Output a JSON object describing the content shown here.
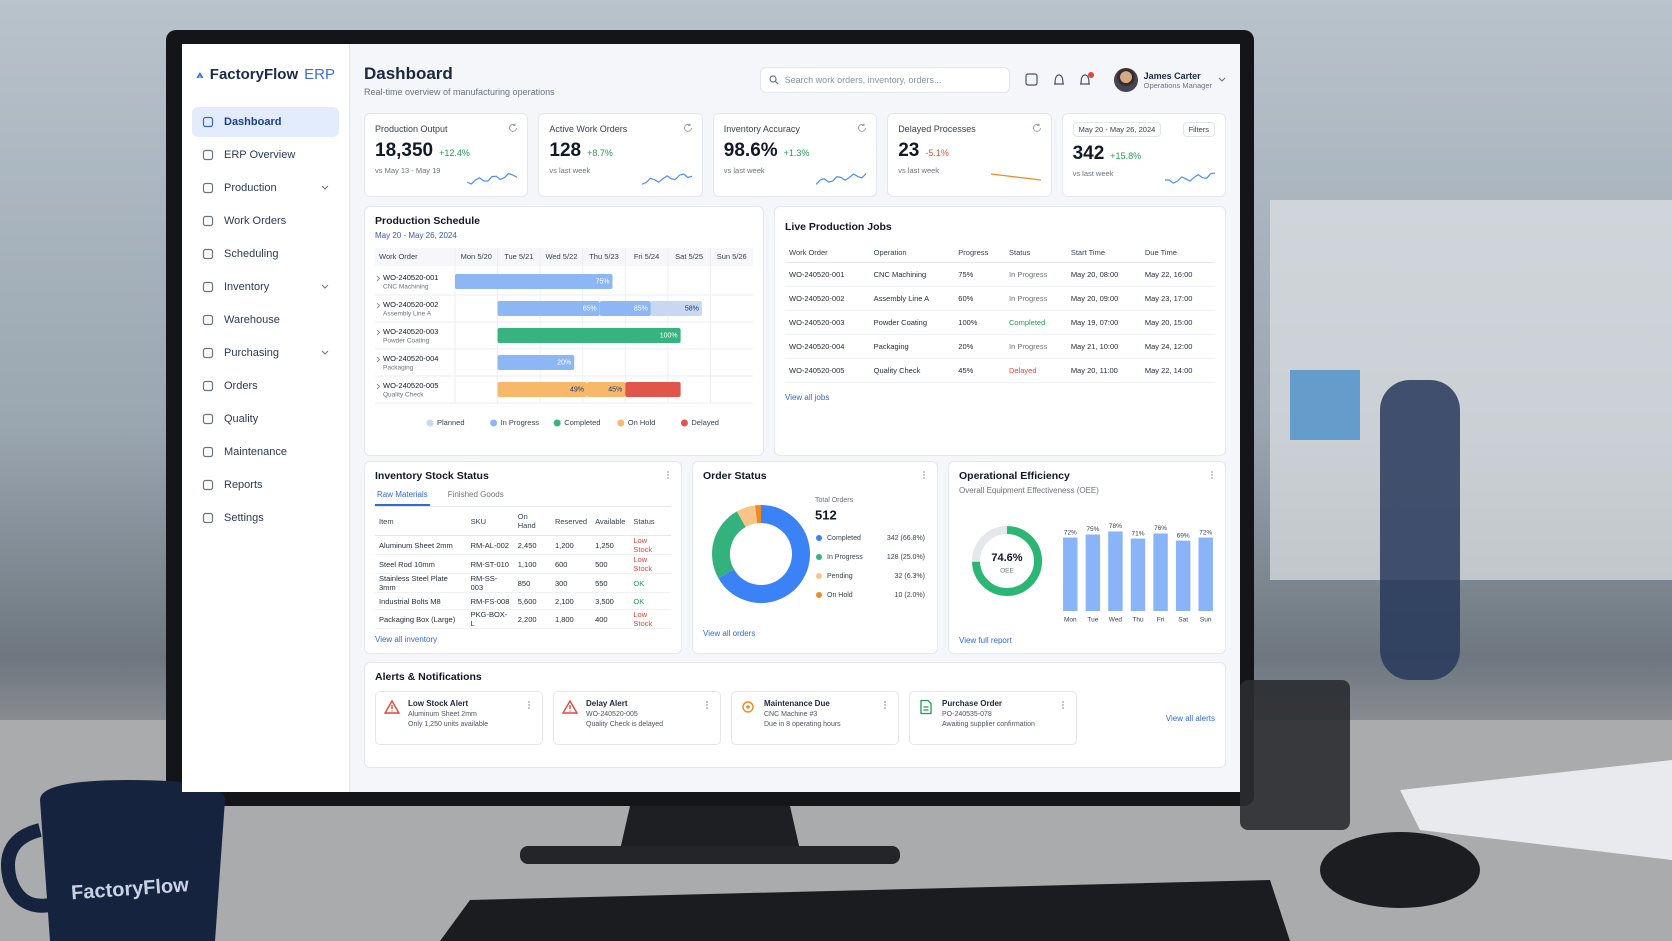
{
  "brand": {
    "name": "FactoryFlow",
    "suffix": "ERP"
  },
  "sidebar": {
    "items": [
      "Dashboard",
      "ERP Overview",
      "Production",
      "Work Orders",
      "Scheduling",
      "Inventory",
      "Warehouse",
      "Purchasing",
      "Orders",
      "Quality",
      "Maintenance",
      "Reports",
      "Settings"
    ],
    "active": 0,
    "expandable": [
      2,
      5,
      7
    ]
  },
  "header": {
    "title": "Dashboard",
    "subtitle": "Real-time overview of manufacturing operations",
    "search_placeholder": "Search work orders, inventory, orders...",
    "user": {
      "name": "James Carter",
      "role": "Operations Manager"
    }
  },
  "kpis": [
    {
      "label": "Production Output",
      "value": "18,350",
      "change": "+12.4%",
      "trend": "up",
      "period": "vs May 13 - May 19"
    },
    {
      "label": "Active Work Orders",
      "value": "128",
      "change": "+8.7%",
      "trend": "up",
      "period": "vs last week"
    },
    {
      "label": "Inventory Accuracy",
      "value": "98.6%",
      "change": "+1.3%",
      "trend": "up",
      "period": "vs last week"
    },
    {
      "label": "Delayed Processes",
      "value": "23",
      "change": "-5.1%",
      "trend": "down",
      "period": "vs last week"
    },
    {
      "date": "May 20 - May 26, 2024",
      "filter": "Filters",
      "value": "342",
      "change": "+15.8%",
      "trend": "up",
      "period": "vs last week"
    }
  ],
  "production_schedule": {
    "title": "Production Schedule",
    "date_range": "May 20 - May 26, 2024",
    "column_header": "Work Order",
    "days": [
      "Mon 5/20",
      "Tue 5/21",
      "Wed 5/22",
      "Thu 5/23",
      "Fri 5/24",
      "Sat 5/25",
      "Sun 5/26"
    ],
    "xlim": [
      0,
      7
    ],
    "rows": [
      {
        "id": "WO-240520-001",
        "operation": "CNC Machining",
        "segments": [
          {
            "start": 0,
            "end": 3.7,
            "status": "In Progress",
            "progress": 75,
            "label": "75%"
          }
        ]
      },
      {
        "id": "WO-240520-002",
        "operation": "Assembly Line A",
        "segments": [
          {
            "start": 1,
            "end": 3.4,
            "status": "In Progress",
            "progress": 65,
            "label": "65%"
          },
          {
            "start": 3.4,
            "end": 4.6,
            "status": "In Progress",
            "progress": 85,
            "label": "85%"
          },
          {
            "start": 4.6,
            "end": 5.8,
            "status": "Planned",
            "progress": 58,
            "label": "58%"
          }
        ]
      },
      {
        "id": "WO-240520-003",
        "operation": "Powder Coating",
        "segments": [
          {
            "start": 1,
            "end": 5.3,
            "status": "Completed",
            "progress": 100,
            "label": "100%"
          }
        ]
      },
      {
        "id": "WO-240520-004",
        "operation": "Packaging",
        "segments": [
          {
            "start": 1,
            "end": 2.8,
            "status": "In Progress",
            "progress": 20,
            "label": "20%"
          }
        ]
      },
      {
        "id": "WO-240520-005",
        "operation": "Quality Check",
        "segments": [
          {
            "start": 1,
            "end": 3.1,
            "status": "On Hold",
            "progress": 49,
            "label": "49%"
          },
          {
            "start": 3.1,
            "end": 4.0,
            "status": "On Hold",
            "progress": 45,
            "label": "45%"
          },
          {
            "start": 4.0,
            "end": 5.3,
            "status": "Delayed"
          }
        ]
      }
    ],
    "legend": [
      {
        "name": "Planned",
        "color": "#c8d7f2"
      },
      {
        "name": "In Progress",
        "color": "#8db6f5"
      },
      {
        "name": "Completed",
        "color": "#36b37e"
      },
      {
        "name": "On Hold",
        "color": "#f7b86a"
      },
      {
        "name": "Delayed",
        "color": "#e0564a"
      }
    ]
  },
  "live_jobs": {
    "title": "Live Production Jobs",
    "columns": [
      "Work Order",
      "Operation",
      "Progress",
      "Status",
      "Start Time",
      "Due Time"
    ],
    "rows": [
      [
        "WO-240520-001",
        "CNC Machining",
        "75%",
        "In Progress",
        "May 20, 08:00",
        "May 22, 16:00"
      ],
      [
        "WO-240520-002",
        "Assembly Line A",
        "60%",
        "In Progress",
        "May 20, 09:00",
        "May 23, 17:00"
      ],
      [
        "WO-240520-003",
        "Powder Coating",
        "100%",
        "Completed",
        "May 19, 07:00",
        "May 20, 15:00"
      ],
      [
        "WO-240520-004",
        "Packaging",
        "20%",
        "In Progress",
        "May 21, 10:00",
        "May 24, 12:00"
      ],
      [
        "WO-240520-005",
        "Quality Check",
        "45%",
        "Delayed",
        "May 20, 11:00",
        "May 22, 14:00"
      ]
    ],
    "status_colors": [
      "#6b7280",
      "#6b7280",
      "#1f9d55",
      "#6b7280",
      "#e0463b"
    ],
    "link": "View all jobs"
  },
  "inventory": {
    "title": "Inventory Stock Status",
    "tabs": [
      "Raw Materials",
      "Finished Goods"
    ],
    "columns": [
      "Item",
      "SKU",
      "On Hand",
      "Reserved",
      "Available",
      "Status"
    ],
    "rows": [
      [
        "Aluminum Sheet 2mm",
        "RM-AL-002",
        "2,450",
        "1,200",
        "1,250",
        "Low Stock"
      ],
      [
        "Steel Rod 10mm",
        "RM-ST-010",
        "1,100",
        "600",
        "500",
        "Low Stock"
      ],
      [
        "Stainless Steel Plate 3mm",
        "RM-SS-003",
        "850",
        "300",
        "550",
        "OK"
      ],
      [
        "Industrial Bolts M8",
        "RM-FS-008",
        "5,600",
        "2,100",
        "3,500",
        "OK"
      ],
      [
        "Packaging Box (Large)",
        "PKG-BOX-L",
        "2,200",
        "1,800",
        "400",
        "Low Stock"
      ]
    ],
    "status_colors": [
      "#e0463b",
      "#e0463b",
      "#1f9d55",
      "#1f9d55",
      "#e0463b"
    ],
    "link": "View all inventory"
  },
  "chart_data": [
    {
      "type": "donut",
      "title": "Order Status",
      "total_label": "Total Orders",
      "total": 512,
      "categories": [
        "Completed",
        "In Progress",
        "Pending",
        "On Hold"
      ],
      "values": [
        342,
        128,
        32,
        10
      ],
      "value_labels": [
        "342 (66.8%)",
        "128 (25.0%)",
        "32 (6.3%)",
        "10 (2.0%)"
      ],
      "colors": [
        "#3b82f6",
        "#34b27d",
        "#f8c48a",
        "#f08a24"
      ],
      "link": "View all orders"
    },
    {
      "type": "bar",
      "title": "Operational Efficiency",
      "subtitle": "Overall Equipment Effectiveness (OEE)",
      "gauge": {
        "value": 74.6,
        "label": "74.6%",
        "caption": "OEE",
        "lim": [
          0,
          100
        ],
        "color": "#2bb673"
      },
      "categories": [
        "Mon",
        "Tue",
        "Wed",
        "Thu",
        "Fri",
        "Sat",
        "Sun"
      ],
      "values": [
        72,
        75,
        78,
        71,
        76,
        69,
        72
      ],
      "value_labels": [
        "72%",
        "75%",
        "78%",
        "71%",
        "76%",
        "69%",
        "72%"
      ],
      "ylim": [
        0,
        100
      ],
      "color": "#8ab4f8",
      "link": "View full report"
    }
  ],
  "alerts": {
    "title": "Alerts & Notifications",
    "items": [
      {
        "title": "Low Stock Alert",
        "lines": [
          "Aluminum Sheet 2mm",
          "Only 1,250 units available"
        ],
        "icon": "warning",
        "color": "#e0463b"
      },
      {
        "title": "Delay Alert",
        "lines": [
          "WO-240520-005",
          "Quality Check is delayed"
        ],
        "icon": "warning",
        "color": "#e0463b"
      },
      {
        "title": "Maintenance Due",
        "lines": [
          "CNC Machine #3",
          "Due in 8 operating hours"
        ],
        "icon": "tool",
        "color": "#f08a24"
      },
      {
        "title": "Purchase Order",
        "lines": [
          "PO-240535-078",
          "Awaiting supplier confirmation"
        ],
        "icon": "document",
        "color": "#1f9d55"
      }
    ],
    "link": "View all alerts"
  },
  "mug_text": "FactoryFlow"
}
